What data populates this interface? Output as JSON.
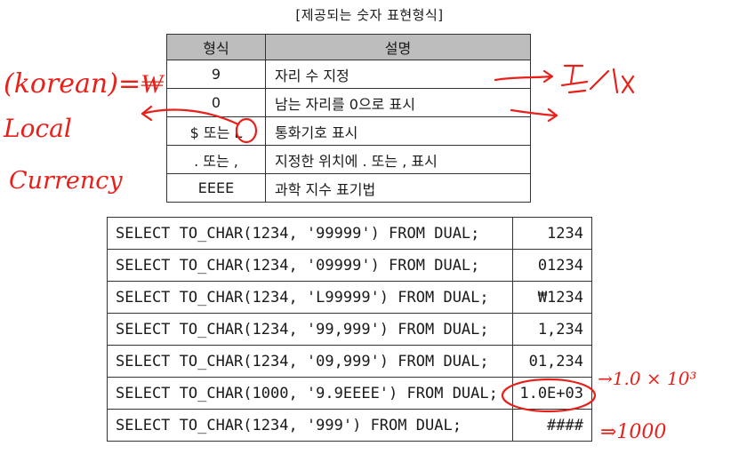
{
  "caption": "[제공되는 숫자 표현형식]",
  "format_table": {
    "headers": [
      "형식",
      "설명"
    ],
    "rows": [
      {
        "format": "9",
        "desc": "자리 수 지정"
      },
      {
        "format": "0",
        "desc": "남는 자리를 0으로 표시"
      },
      {
        "format": "$ 또는 L",
        "desc": "통화기호 표시"
      },
      {
        "format": ". 또는 ,",
        "desc": "지정한 위치에 . 또는 , 표시"
      },
      {
        "format": "EEEE",
        "desc": "과학 지수 표기법"
      }
    ]
  },
  "examples": [
    {
      "query": "SELECT TO_CHAR(1234, '99999') FROM DUAL;",
      "result": "1234"
    },
    {
      "query": "SELECT TO_CHAR(1234, '09999') FROM DUAL;",
      "result": "01234"
    },
    {
      "query": "SELECT TO_CHAR(1234, 'L99999') FROM DUAL;",
      "result": "₩1234"
    },
    {
      "query": "SELECT TO_CHAR(1234, '99,999') FROM DUAL;",
      "result": "1,234"
    },
    {
      "query": "SELECT TO_CHAR(1234, '09,999') FROM DUAL;",
      "result": "01,234"
    },
    {
      "query": "SELECT TO_CHAR(1000, '9.9EEEE') FROM DUAL;",
      "result": "1.0E+03"
    },
    {
      "query": "SELECT TO_CHAR(1234, '999') FROM DUAL;",
      "result": "####"
    }
  ],
  "annotations": {
    "korean": "(korean)=₩",
    "local": "Local",
    "currency": "Currency",
    "exp_note": "→1.0 × 10³",
    "result_note": "⇒1000",
    "ink_color": "#e8201a"
  }
}
